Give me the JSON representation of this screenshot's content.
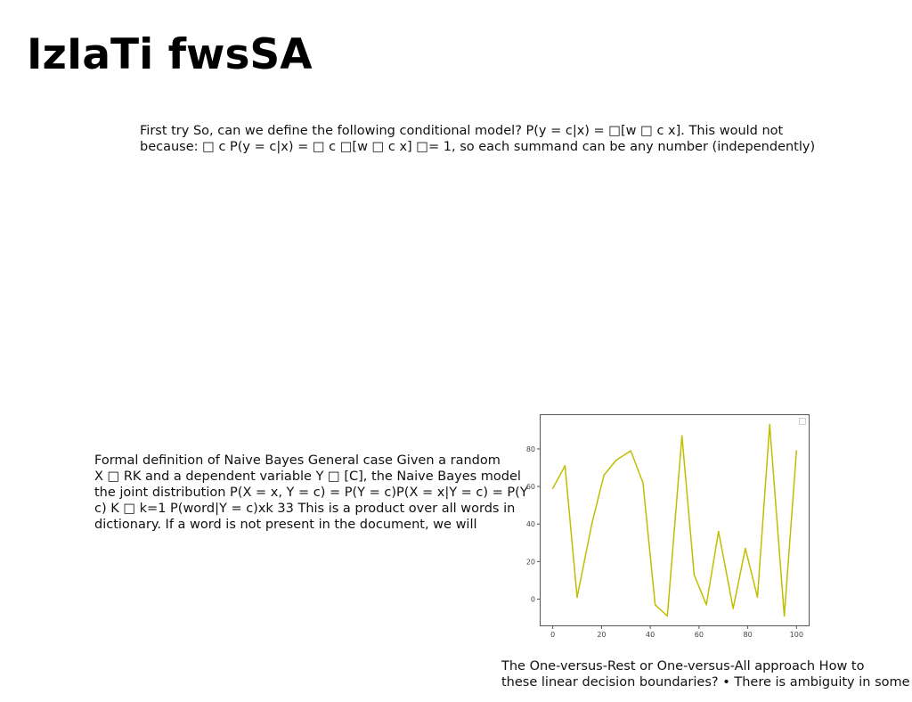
{
  "title": "IzIaTi fwsSA",
  "paragraphs": {
    "top": [
      "First try So, can we define the following conditional model? P(y = c|x) = □[w □ c x]. This would not",
      "because: □ c P(y = c|x) = □ c □[w □ c x] □= 1, so each summand can be any number (independently)"
    ],
    "left": [
      "Formal definition of Naive Bayes General case Given a random",
      "X □ RK and a dependent variable Y □ [C], the Naive Bayes model",
      "the joint distribution P(X = x, Y = c) = P(Y = c)P(X = x|Y = c) = P(Y",
      "c) K □ k=1 P(word|Y = c)xk 33 This is a product over all words in",
      "dictionary. If a word is not present in the document, we will"
    ],
    "bottom": [
      "The One-versus-Rest or One-versus-All approach How to",
      "these linear decision boundaries? • There is ambiguity in some"
    ]
  },
  "chart_data": {
    "type": "line",
    "title": "",
    "xlabel": "",
    "ylabel": "",
    "xlim": [
      -5,
      105
    ],
    "ylim": [
      -14,
      98
    ],
    "xticks": [
      0,
      20,
      40,
      60,
      80,
      100
    ],
    "yticks": [
      0,
      20,
      40,
      60,
      80
    ],
    "grid": false,
    "legend": "top-right (empty)",
    "series": [
      {
        "color": "#bfbf00",
        "x": [
          0,
          5,
          10,
          16,
          21,
          26,
          32,
          37,
          42,
          47,
          53,
          58,
          63,
          68,
          74,
          79,
          84,
          89,
          95,
          100
        ],
        "y": [
          59,
          71,
          1,
          40,
          66,
          74,
          79,
          62,
          -3,
          -9,
          87,
          13,
          -3,
          36,
          -5,
          27,
          1,
          93,
          -9,
          79
        ]
      }
    ]
  }
}
